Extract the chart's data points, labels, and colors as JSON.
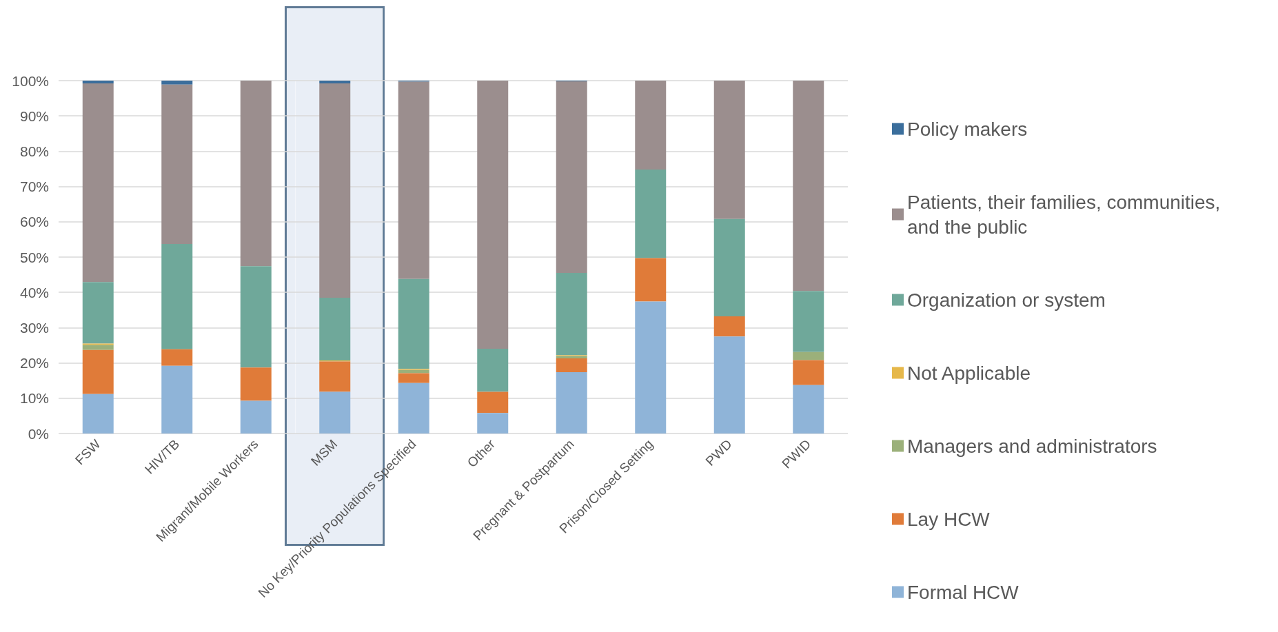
{
  "chart_data": {
    "type": "bar",
    "stacked": true,
    "categories": [
      "FSW",
      "HIV/TB",
      "Migrant/Mobile Workers",
      "MSM",
      "No Key/Priority Populations Specified",
      "Other",
      "Pregnant & Postpartum",
      "Prison/Closed Setting",
      "PWD",
      "PWID"
    ],
    "series": [
      {
        "name": "Formal HCW",
        "color": "#8fb4d8",
        "values": [
          11.2,
          19.2,
          9.3,
          11.8,
          14.3,
          5.8,
          17.4,
          37.4,
          27.5,
          13.7
        ]
      },
      {
        "name": "Lay HCW",
        "color": "#e07b39",
        "values": [
          12.5,
          4.7,
          9.4,
          8.6,
          2.8,
          6.0,
          3.9,
          12.3,
          5.7,
          7.1
        ]
      },
      {
        "name": "Managers and administrators",
        "color": "#9bb07a",
        "values": [
          1.4,
          0,
          0,
          0,
          0.9,
          0,
          0.7,
          0,
          0,
          2.3
        ]
      },
      {
        "name": "Not Applicable",
        "color": "#e6b84a",
        "values": [
          0.4,
          0,
          0,
          0.3,
          0.3,
          0,
          0.2,
          0,
          0,
          0
        ]
      },
      {
        "name": "Organization or system",
        "color": "#6fa89a",
        "values": [
          17.4,
          29.8,
          28.7,
          17.8,
          25.5,
          12.2,
          23.3,
          25.1,
          27.6,
          17.3
        ]
      },
      {
        "name": "Patients, their families, communities, and the public",
        "color": "#9b8e8e",
        "values": [
          56.3,
          45.2,
          52.6,
          60.7,
          55.9,
          76.0,
          54.3,
          25.2,
          39.2,
          59.6
        ]
      },
      {
        "name": "Policy makers",
        "color": "#3b6e9c",
        "values": [
          0.8,
          1.1,
          0,
          0.8,
          0.3,
          0,
          0.2,
          0,
          0,
          0
        ]
      }
    ],
    "ylim": [
      0,
      100
    ],
    "yticks": [
      {
        "value": 0,
        "label": "0%"
      },
      {
        "value": 10,
        "label": "10%"
      },
      {
        "value": 20,
        "label": "20%"
      },
      {
        "value": 30,
        "label": "30%"
      },
      {
        "value": 40,
        "label": "40%"
      },
      {
        "value": 50,
        "label": "50%"
      },
      {
        "value": 60,
        "label": "60%"
      },
      {
        "value": 70,
        "label": "70%"
      },
      {
        "value": 80,
        "label": "80%"
      },
      {
        "value": 90,
        "label": "90%"
      },
      {
        "value": 100,
        "label": "100%"
      }
    ],
    "grid": "y",
    "legend": "right",
    "bands": [
      {
        "axis": "x",
        "from": "MSM",
        "to": "MSM",
        "color": "#e9eef6"
      }
    ]
  }
}
